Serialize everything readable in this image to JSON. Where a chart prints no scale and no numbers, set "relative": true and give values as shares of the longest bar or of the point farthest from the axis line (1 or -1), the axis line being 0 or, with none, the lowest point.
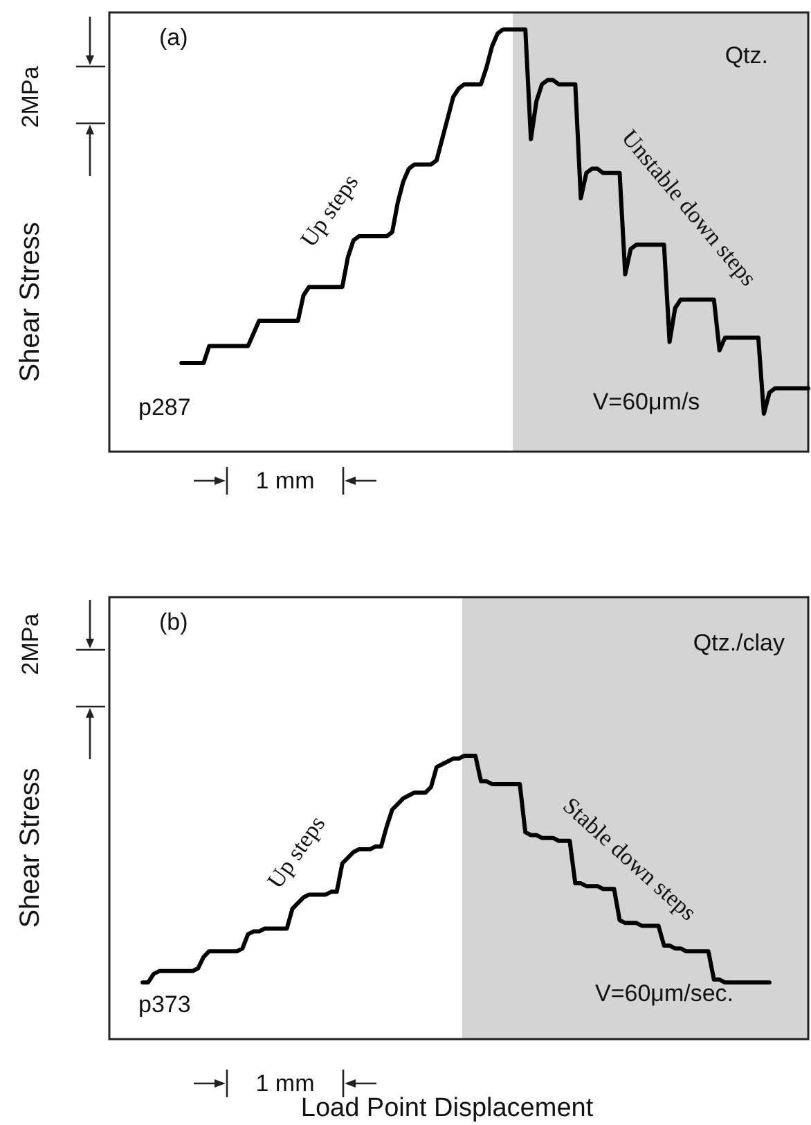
{
  "chart_data": [
    {
      "type": "line",
      "relative": true,
      "ylabel": "Shear Stress",
      "marker": "none",
      "line_style": "solid",
      "annotations": [
        "(a)",
        "Qtz.",
        "Up steps",
        "Unstable down steps",
        "p287",
        "V=60μm/s",
        "1 mm",
        "2MPa"
      ],
      "categories": [
        null,
        null,
        null,
        null,
        null,
        null,
        null,
        null,
        null,
        null,
        null,
        null,
        null,
        null,
        null,
        null,
        null,
        null,
        null,
        null,
        null,
        null,
        null,
        null,
        null,
        null,
        null,
        null,
        null,
        null,
        null,
        null,
        null,
        null,
        null,
        null,
        null,
        null,
        null,
        null,
        null,
        null,
        null,
        null,
        null,
        null,
        null,
        null,
        null,
        null,
        null,
        null,
        null,
        null,
        null,
        null,
        null,
        null,
        null,
        null,
        null,
        null,
        null,
        null,
        null,
        null,
        null,
        null,
        null,
        null,
        null,
        null,
        null,
        null,
        null,
        null,
        null,
        null,
        null,
        null,
        null,
        null,
        null,
        null,
        null,
        null,
        null,
        null,
        null,
        null,
        null,
        null,
        null,
        null,
        null,
        null,
        null,
        null,
        null,
        null,
        null,
        null,
        null,
        null,
        null,
        null,
        null,
        null,
        null,
        null,
        null,
        null,
        null,
        null,
        null,
        null,
        null,
        null,
        null,
        null,
        null,
        null,
        null,
        null,
        null,
        null,
        null
      ],
      "series": [
        {
          "color": "#000000",
          "values": [
            null,
            null,
            null,
            null,
            null,
            null,
            null,
            null,
            null,
            null,
            null,
            null,
            null,
            0.21,
            0.21,
            0.21,
            0.21,
            0.21,
            0.25,
            0.25,
            0.25,
            0.25,
            0.25,
            0.25,
            0.25,
            0.25,
            0.28,
            0.31,
            0.31,
            0.31,
            0.31,
            0.31,
            0.31,
            0.31,
            0.31,
            0.37,
            0.39,
            0.39,
            0.39,
            0.39,
            0.39,
            0.39,
            0.39,
            0.46,
            0.5,
            0.51,
            0.51,
            0.51,
            0.51,
            0.51,
            0.51,
            0.52,
            0.59,
            0.64,
            0.67,
            0.68,
            0.68,
            0.68,
            0.68,
            0.69,
            0.74,
            0.79,
            0.84,
            0.86,
            0.87,
            0.87,
            0.87,
            0.87,
            0.91,
            0.96,
            0.99,
            1,
            1,
            1,
            1,
            1,
            0.74,
            0.83,
            0.87,
            0.88,
            0.88,
            0.87,
            0.87,
            0.87,
            0.87,
            0.6,
            0.66,
            0.67,
            0.67,
            0.66,
            0.66,
            0.66,
            0.66,
            0.42,
            0.48,
            0.49,
            0.49,
            0.49,
            0.49,
            0.49,
            0.49,
            0.26,
            0.34,
            0.36,
            0.36,
            0.36,
            0.36,
            0.36,
            0.36,
            0.36,
            0.24,
            0.27,
            0.27,
            0.27,
            0.27,
            0.27,
            0.27,
            0.27,
            0.09,
            0.14,
            0.15,
            0.15,
            0.15,
            0.15,
            0.15,
            0.15,
            0.15
          ]
        }
      ]
    },
    {
      "type": "line",
      "relative": true,
      "ylabel": "Shear Stress",
      "xlabel": "Load Point Displacement",
      "marker": "none",
      "line_style": "solid",
      "annotations": [
        "(b)",
        "Qtz./clay",
        "Up steps",
        "Stable down steps",
        "p373",
        "V=60μm/sec.",
        "1 mm",
        "2MPa"
      ],
      "categories": [
        null,
        null,
        null,
        null,
        null,
        null,
        null,
        null,
        null,
        null,
        null,
        null,
        null,
        null,
        null,
        null,
        null,
        null,
        null,
        null,
        null,
        null,
        null,
        null,
        null,
        null,
        null,
        null,
        null,
        null,
        null,
        null,
        null,
        null,
        null,
        null,
        null,
        null,
        null,
        null,
        null,
        null,
        null,
        null,
        null,
        null,
        null,
        null,
        null,
        null,
        null,
        null,
        null,
        null,
        null,
        null,
        null,
        null,
        null,
        null,
        null,
        null,
        null,
        null,
        null,
        null,
        null,
        null,
        null,
        null,
        null,
        null,
        null,
        null,
        null,
        null,
        null,
        null,
        null,
        null,
        null,
        null,
        null,
        null,
        null,
        null,
        null,
        null,
        null,
        null,
        null,
        null,
        null,
        null,
        null,
        null,
        null,
        null,
        null,
        null,
        null,
        null,
        null,
        null,
        null,
        null,
        null,
        null,
        null,
        null,
        null,
        null,
        null,
        null,
        null,
        null,
        null,
        null,
        null,
        null,
        null,
        null,
        null,
        null,
        null,
        null,
        null
      ],
      "series": [
        {
          "color": "#000000",
          "values": [
            null,
            null,
            null,
            null,
            null,
            null,
            0.2,
            0.2,
            0.23,
            0.24,
            0.24,
            0.24,
            0.24,
            0.24,
            0.24,
            0.24,
            0.25,
            0.29,
            0.31,
            0.31,
            0.31,
            0.31,
            0.31,
            0.31,
            0.32,
            0.37,
            0.38,
            0.38,
            0.39,
            0.39,
            0.39,
            0.39,
            0.39,
            0.46,
            0.48,
            0.5,
            0.51,
            0.51,
            0.51,
            0.51,
            0.52,
            0.52,
            0.62,
            0.64,
            0.66,
            0.67,
            0.67,
            0.67,
            0.68,
            0.68,
            0.75,
            0.81,
            0.83,
            0.85,
            0.86,
            0.87,
            0.87,
            0.87,
            0.89,
            0.96,
            0.97,
            0.98,
            0.99,
            0.99,
            1,
            1,
            1,
            0.91,
            0.91,
            0.9,
            0.9,
            0.9,
            0.9,
            0.9,
            0.9,
            0.73,
            0.72,
            0.72,
            0.71,
            0.71,
            0.71,
            0.7,
            0.7,
            0.7,
            0.55,
            0.55,
            0.54,
            0.54,
            0.54,
            0.53,
            0.53,
            0.53,
            0.42,
            0.41,
            0.41,
            0.41,
            0.4,
            0.4,
            0.4,
            0.4,
            0.33,
            0.33,
            0.32,
            0.32,
            0.31,
            0.31,
            0.31,
            0.31,
            0.31,
            0.21,
            0.21,
            0.2,
            0.2,
            0.2,
            0.2,
            0.2,
            0.2,
            0.2,
            0.2,
            0.2,
            null,
            null,
            null,
            null,
            null,
            null,
            null
          ]
        }
      ]
    }
  ]
}
